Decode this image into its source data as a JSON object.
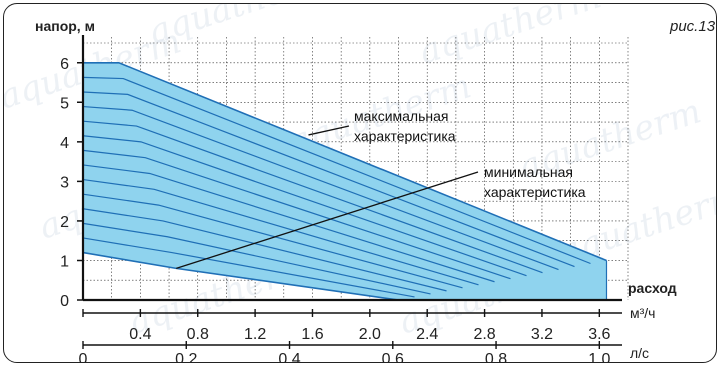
{
  "chart_data": {
    "type": "area",
    "figure_label": "рис.13",
    "watermark": "aquatherm",
    "ylabel": "напор, м",
    "xlabel": "расход",
    "x_unit_primary": "м³/ч",
    "x_unit_secondary": "л/с",
    "ylim": [
      0,
      6.5
    ],
    "xlim": [
      0,
      3.8
    ],
    "x_ticks_primary": [
      "0.4",
      "0.8",
      "1.2",
      "1.6",
      "2.0",
      "2.4",
      "2.8",
      "3.2",
      "3.6"
    ],
    "x_ticks_secondary": [
      "0",
      "0.2",
      "0.4",
      "0.6",
      "0.8",
      "1.0"
    ],
    "y_ticks": [
      "0",
      "1",
      "2",
      "3",
      "4",
      "5",
      "6"
    ],
    "grid": true,
    "band": {
      "max_characteristic": [
        [
          0,
          6.0
        ],
        [
          0.25,
          6.0
        ],
        [
          3.65,
          1.0
        ]
      ],
      "min_characteristic": [
        [
          0,
          1.2
        ],
        [
          0.65,
          0.8
        ],
        [
          2.2,
          0.0
        ]
      ],
      "fill_color": "#8fd3ee",
      "line_color": "#1f6fb6",
      "intermediate_curves": 13
    },
    "annotations": [
      {
        "label_line1": "максимальная",
        "label_line2": "характеристика",
        "target": [
          1.6,
          4.2
        ]
      },
      {
        "label_line1": "минимальная",
        "label_line2": "характеристика",
        "target": [
          0.65,
          0.8
        ]
      }
    ]
  }
}
